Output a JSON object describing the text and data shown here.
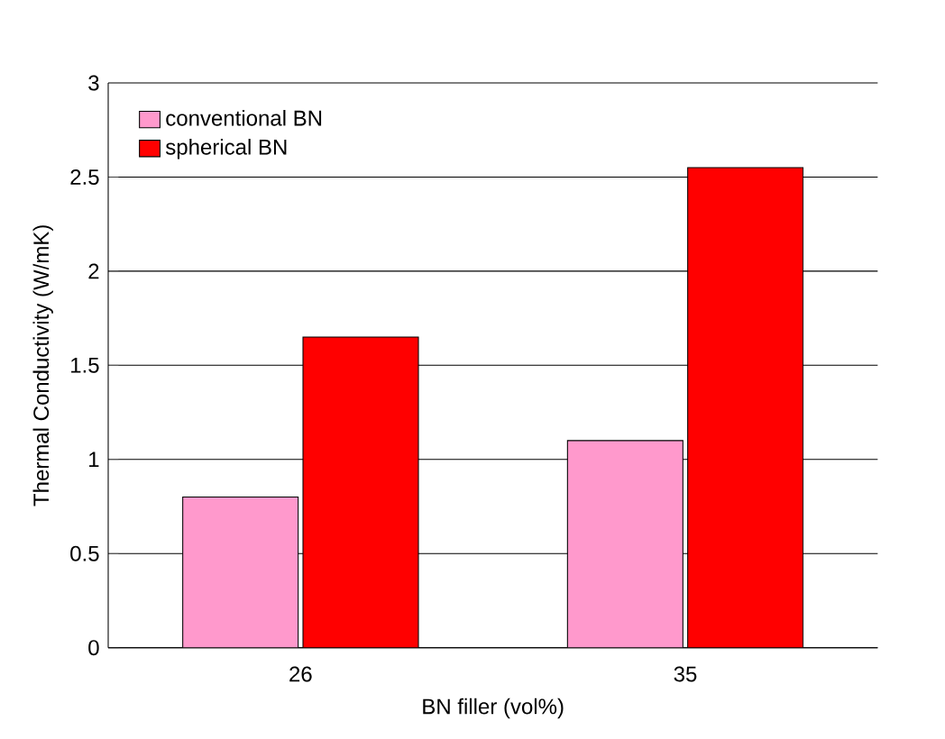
{
  "chart_data": {
    "type": "bar",
    "xlabel": "BN filler (vol%)",
    "ylabel": "Thermal Conductivity (W/mK)",
    "categories": [
      "26",
      "35"
    ],
    "series": [
      {
        "name": "conventional BN",
        "color": "#ff99cc",
        "values": [
          0.8,
          1.1
        ]
      },
      {
        "name": "spherical BN",
        "color": "#ff0000",
        "values": [
          1.65,
          2.55
        ]
      }
    ],
    "ylim": [
      0,
      3
    ],
    "yticks": [
      0,
      0.5,
      1,
      1.5,
      2,
      2.5,
      3
    ],
    "grid": "y",
    "legend": "top left"
  }
}
